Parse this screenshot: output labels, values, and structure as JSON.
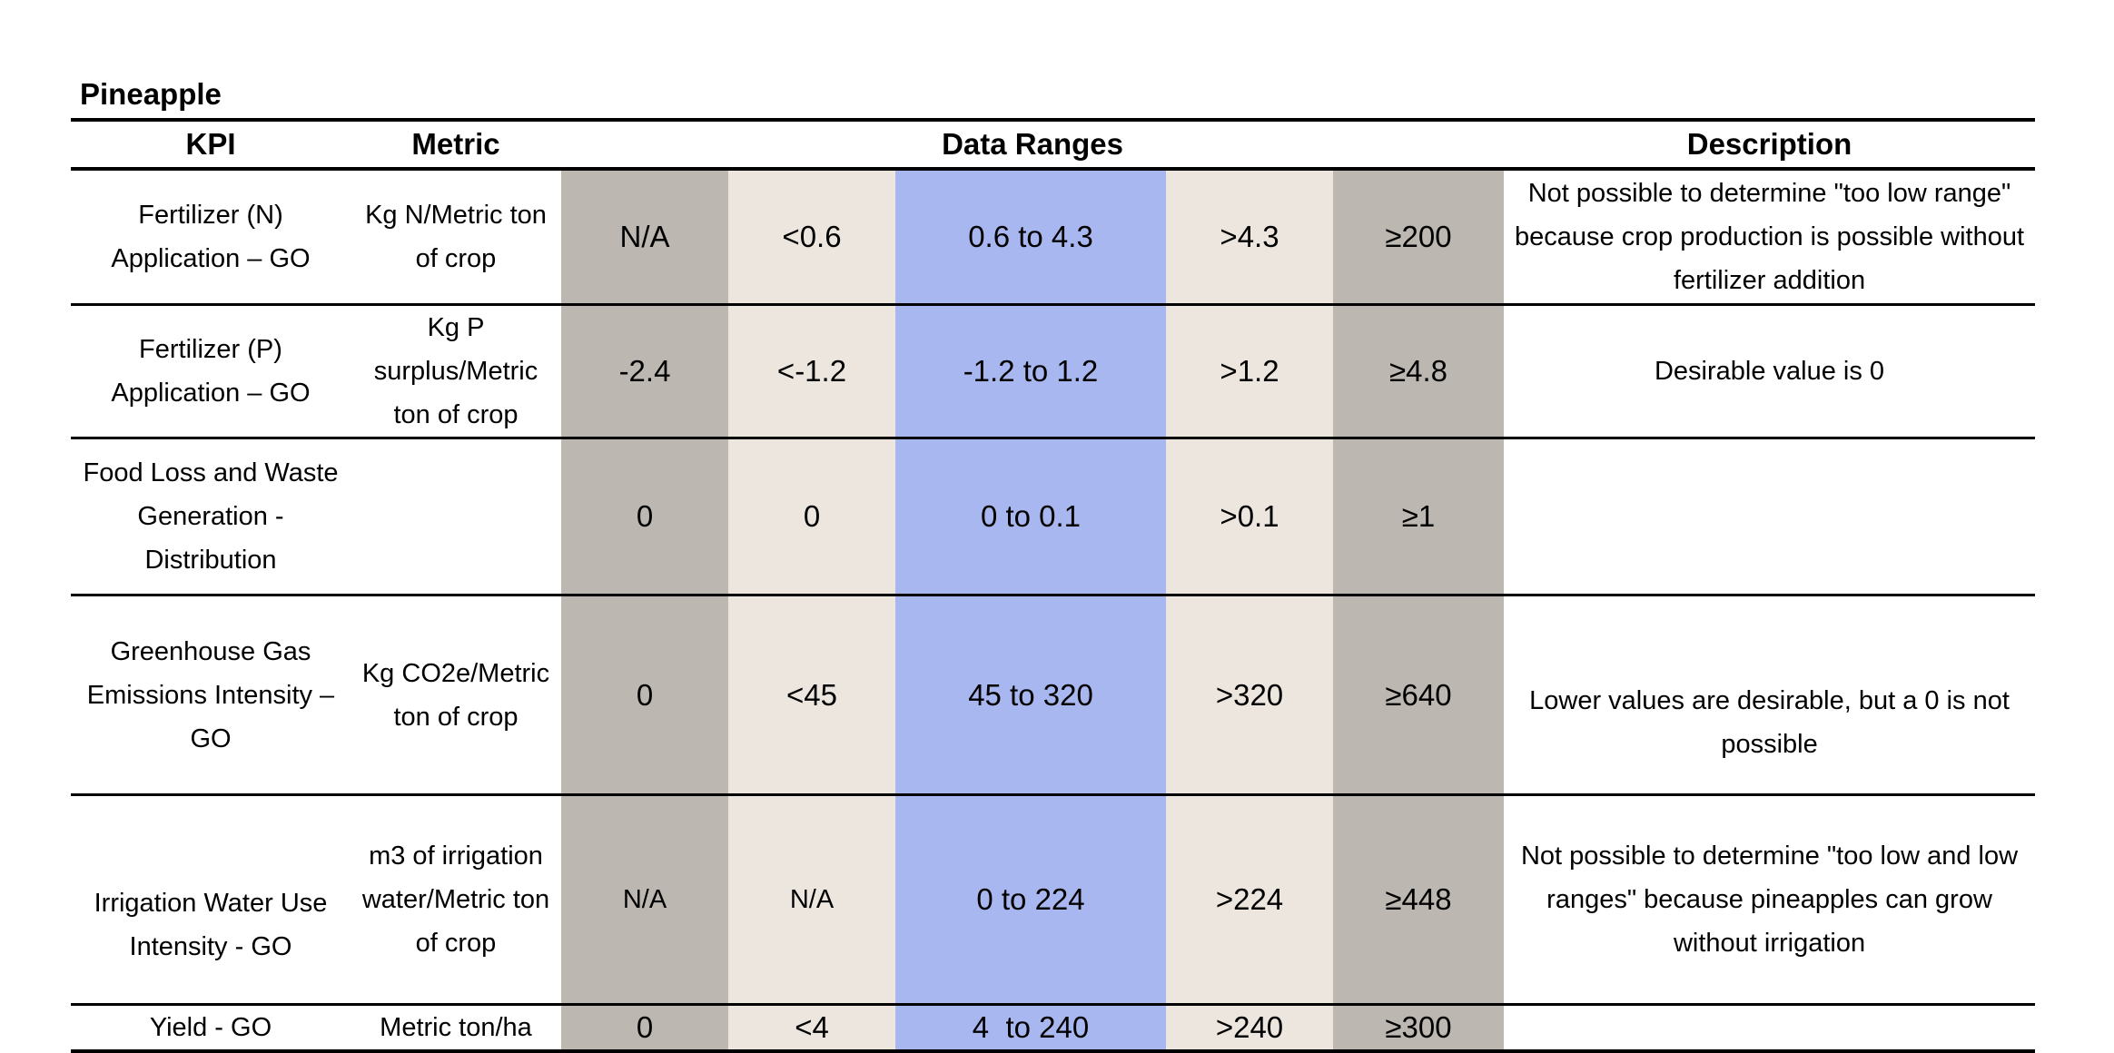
{
  "title": "Pineapple",
  "headers": {
    "kpi": "KPI",
    "metric": "Metric",
    "data_ranges": "Data Ranges",
    "description": "Description"
  },
  "colors": {
    "range_outer": "#bcb8b1",
    "range_low_high": "#ede6de",
    "range_target": "#a9b7f0"
  },
  "rows": [
    {
      "kpi": "Fertilizer (N) Application – GO",
      "metric": "Kg N/Metric ton of crop",
      "ranges": [
        "N/A",
        "<0.6",
        "0.6 to 4.3",
        ">4.3",
        "≥200"
      ],
      "description": "Not possible to determine \"too low range\" because crop production is possible without fertilizer addition"
    },
    {
      "kpi": "Fertilizer (P) Application – GO",
      "metric": "Kg P surplus/Metric ton of crop",
      "ranges": [
        "-2.4",
        "<-1.2",
        "-1.2 to 1.2",
        ">1.2",
        "≥4.8"
      ],
      "description": "Desirable value is 0"
    },
    {
      "kpi": "Food Loss and Waste Generation - Distribution",
      "metric": "",
      "ranges": [
        "0",
        "0",
        "0 to 0.1",
        ">0.1",
        "≥1"
      ],
      "description": ""
    },
    {
      "kpi": "Greenhouse Gas Emissions Intensity – GO",
      "metric": "Kg CO2e/Metric ton of crop",
      "ranges": [
        "0",
        "<45",
        "45 to 320",
        ">320",
        "≥640"
      ],
      "description": "Lower values are desirable, but a 0 is not possible"
    },
    {
      "kpi": "Irrigation Water Use Intensity - GO",
      "metric": "m3 of irrigation water/Metric ton of crop",
      "ranges": [
        "N/A",
        "N/A",
        "0 to 224",
        ">224",
        "≥448"
      ],
      "description": "Not possible to determine \"too low and low ranges\" because pineapples can grow without irrigation"
    },
    {
      "kpi": "Yield - GO",
      "metric": "Metric ton/ha",
      "ranges": [
        "0",
        "<4",
        "4  to 240",
        ">240",
        "≥300"
      ],
      "description": ""
    }
  ]
}
